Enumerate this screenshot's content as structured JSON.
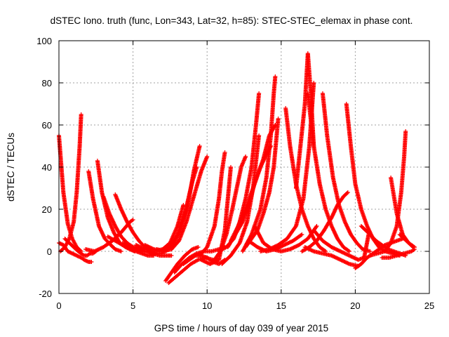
{
  "chart_data": {
    "type": "scatter",
    "title": "dSTEC Iono. truth (func, Lon=343, Lat=32, h=85): STEC-STEC_elemax in phase cont.",
    "xlabel": "GPS time / hours of day 039 of year 2015",
    "ylabel": "dSTEC  / TECUs",
    "xlim": [
      0,
      25
    ],
    "ylim": [
      -20,
      100
    ],
    "xticks": [
      0,
      5,
      10,
      15,
      20,
      25
    ],
    "yticks": [
      -20,
      0,
      20,
      40,
      60,
      80,
      100
    ],
    "grid": true,
    "marker": "plus",
    "color": "#ff0000",
    "series": [
      {
        "x": [
          0.0,
          0.3,
          0.6,
          0.9,
          1.2,
          1.5
        ],
        "values": [
          55,
          28,
          13,
          6,
          2,
          0
        ]
      },
      {
        "x": [
          0.0,
          0.3,
          0.6,
          0.9,
          1.2,
          1.5,
          1.7,
          2.0,
          2.2
        ],
        "values": [
          4,
          3,
          0,
          -1,
          -2,
          -3,
          -4,
          -5,
          -5
        ]
      },
      {
        "x": [
          0.1,
          0.4,
          0.7,
          1.0,
          1.2,
          1.4,
          1.5
        ],
        "values": [
          0,
          2,
          6,
          14,
          28,
          50,
          65
        ]
      },
      {
        "x": [
          0.4,
          0.7,
          1.0,
          1.3,
          1.5,
          1.7,
          1.9,
          2.1,
          2.3,
          2.5
        ],
        "values": [
          6,
          4,
          2,
          0,
          -1,
          -2,
          -2,
          -1,
          -1,
          0
        ]
      },
      {
        "x": [
          2.0,
          2.3,
          2.7,
          3.1,
          3.5,
          3.8,
          4.2
        ],
        "values": [
          38,
          25,
          12,
          6,
          3,
          1,
          0
        ]
      },
      {
        "x": [
          2.6,
          2.9,
          3.3,
          3.7,
          4.1,
          4.5,
          4.8,
          5.1
        ],
        "values": [
          43,
          28,
          16,
          9,
          4,
          2,
          1,
          0
        ]
      },
      {
        "x": [
          3.0,
          3.4,
          3.8,
          4.2,
          4.6,
          5.0,
          5.4,
          5.8
        ],
        "values": [
          26,
          18,
          12,
          7,
          4,
          2,
          1,
          0
        ]
      },
      {
        "x": [
          3.8,
          4.2,
          4.6,
          5.0,
          5.4,
          5.8,
          6.2,
          6.6,
          7.0
        ],
        "values": [
          27,
          20,
          14,
          9,
          5,
          2,
          0,
          -1,
          -1
        ]
      },
      {
        "x": [
          1.8,
          2.4,
          3.0,
          3.6,
          4.2,
          4.8,
          5.0
        ],
        "values": [
          1,
          0,
          2,
          5,
          9,
          14,
          15
        ]
      },
      {
        "x": [
          3.3,
          3.8,
          4.3,
          4.8,
          5.2,
          5.6,
          6.0,
          6.4
        ],
        "values": [
          7,
          5,
          3,
          1,
          0,
          -1,
          -2,
          -2
        ]
      },
      {
        "x": [
          4.3,
          4.8,
          5.3,
          5.8,
          6.3,
          6.8,
          7.2,
          7.6
        ],
        "values": [
          4,
          2,
          1,
          0,
          -1,
          -2,
          -2,
          -2
        ]
      },
      {
        "x": [
          5.2,
          5.8,
          6.4,
          7.0,
          7.5,
          8.0,
          8.4
        ],
        "values": [
          3,
          1,
          0,
          1,
          4,
          12,
          22
        ]
      },
      {
        "x": [
          5.8,
          6.4,
          7.0,
          7.5,
          8.0,
          8.5,
          9.0,
          9.3
        ],
        "values": [
          3,
          1,
          0,
          2,
          8,
          18,
          33,
          40
        ]
      },
      {
        "x": [
          6.6,
          7.2,
          7.7,
          8.2,
          8.7,
          9.1,
          9.5
        ],
        "values": [
          1,
          0,
          3,
          10,
          22,
          38,
          50
        ]
      },
      {
        "x": [
          7.0,
          7.6,
          8.1,
          8.6,
          9.1,
          9.6,
          10.0
        ],
        "values": [
          0,
          1,
          5,
          14,
          26,
          38,
          45
        ]
      },
      {
        "x": [
          7.2,
          7.6,
          8.0,
          8.5,
          9.0,
          9.4
        ],
        "values": [
          -14,
          -10,
          -6,
          -2,
          1,
          2
        ]
      },
      {
        "x": [
          7.4,
          7.9,
          8.4,
          8.9,
          9.4,
          9.9,
          10.4
        ],
        "values": [
          -15,
          -12,
          -9,
          -6,
          -4,
          -3,
          -4
        ]
      },
      {
        "x": [
          7.8,
          8.3,
          8.8,
          9.3,
          9.8,
          10.3,
          10.8,
          11.2
        ],
        "values": [
          -10,
          -6,
          -3,
          -1,
          0,
          0,
          1,
          2
        ]
      },
      {
        "x": [
          8.4,
          8.8,
          9.2,
          9.6,
          10.0,
          10.4,
          10.8,
          11.2
        ],
        "values": [
          -6,
          -4,
          -2,
          -2,
          -3,
          -5,
          -6,
          -4
        ]
      },
      {
        "x": [
          9.5,
          10.0,
          10.5,
          10.8,
          11.0,
          11.2
        ],
        "values": [
          -2,
          2,
          12,
          25,
          38,
          47
        ]
      },
      {
        "x": [
          9.6,
          10.2,
          10.8,
          11.2,
          11.6
        ],
        "values": [
          -4,
          -6,
          -4,
          10,
          40
        ]
      },
      {
        "x": [
          10.4,
          10.9,
          11.3,
          11.7,
          12.0,
          12.3,
          12.6
        ],
        "values": [
          -5,
          0,
          8,
          20,
          30,
          40,
          45
        ]
      },
      {
        "x": [
          10.8,
          11.3,
          11.8,
          12.2,
          12.6,
          13.0,
          13.3,
          13.5
        ],
        "values": [
          0,
          2,
          6,
          14,
          25,
          40,
          60,
          75
        ]
      },
      {
        "x": [
          11.0,
          11.6,
          12.2,
          12.7,
          13.1,
          13.5
        ],
        "values": [
          -6,
          -2,
          4,
          14,
          30,
          55
        ]
      },
      {
        "x": [
          11.4,
          11.9,
          12.4,
          12.8,
          13.2,
          13.6,
          14.0,
          14.3
        ],
        "values": [
          2,
          8,
          14,
          22,
          32,
          40,
          46,
          50
        ]
      },
      {
        "x": [
          11.6,
          12.1,
          12.6,
          13.0,
          13.4,
          13.8,
          14.2,
          14.6
        ],
        "values": [
          5,
          12,
          20,
          28,
          36,
          44,
          55,
          60
        ]
      },
      {
        "x": [
          12.4,
          13.0,
          13.6,
          14.0,
          14.3,
          14.5,
          14.6
        ],
        "values": [
          0,
          8,
          20,
          35,
          55,
          75,
          83
        ]
      },
      {
        "x": [
          12.6,
          13.0,
          13.4,
          13.8,
          14.2,
          14.5,
          14.8
        ],
        "values": [
          2,
          6,
          10,
          18,
          28,
          40,
          63
        ]
      },
      {
        "x": [
          12.8,
          13.4,
          14.0,
          14.6,
          15.2,
          15.8,
          16.4
        ],
        "values": [
          5,
          2,
          0,
          1,
          3,
          5,
          8
        ]
      },
      {
        "x": [
          13.2,
          13.8,
          14.4,
          15.0,
          15.6,
          16.2,
          16.8,
          17.4
        ],
        "values": [
          12,
          4,
          1,
          0,
          1,
          3,
          6,
          12
        ]
      },
      {
        "x": [
          13.6,
          14.2,
          14.8,
          15.4,
          16.0,
          16.5,
          16.9,
          17.2
        ],
        "values": [
          0,
          1,
          3,
          6,
          12,
          25,
          50,
          80
        ]
      },
      {
        "x": [
          15.3,
          15.6,
          16.0,
          16.4,
          16.8,
          17.2,
          17.6,
          18.0
        ],
        "values": [
          68,
          50,
          32,
          20,
          12,
          6,
          2,
          0
        ]
      },
      {
        "x": [
          16.0,
          16.3,
          16.6,
          16.8,
          17.0,
          17.2
        ],
        "values": [
          30,
          50,
          70,
          94,
          75,
          50
        ]
      },
      {
        "x": [
          16.8,
          17.2,
          17.6,
          18.0,
          18.4,
          18.8,
          19.2,
          19.6
        ],
        "values": [
          75,
          50,
          32,
          20,
          12,
          6,
          2,
          0
        ]
      },
      {
        "x": [
          17.8,
          18.1,
          18.5,
          18.9,
          19.3,
          19.7,
          20.1,
          20.5,
          21.0
        ],
        "values": [
          75,
          55,
          35,
          22,
          14,
          8,
          4,
          1,
          0
        ]
      },
      {
        "x": [
          16.4,
          16.9,
          17.4,
          17.9,
          18.4,
          18.8,
          19.2,
          19.5
        ],
        "values": [
          0,
          2,
          5,
          10,
          16,
          22,
          26,
          28
        ]
      },
      {
        "x": [
          16.6,
          17.2,
          17.8,
          18.4,
          19.0,
          19.6,
          20.2
        ],
        "values": [
          2,
          0,
          -1,
          -2,
          -4,
          -6,
          -7
        ]
      },
      {
        "x": [
          17.2,
          17.8,
          18.4,
          19.0,
          19.6,
          20.2,
          20.6,
          20.9
        ],
        "values": [
          10,
          5,
          2,
          0,
          -2,
          -4,
          -3,
          8
        ]
      },
      {
        "x": [
          19.4,
          19.7,
          20.0,
          20.4,
          20.8,
          21.2,
          21.6,
          22.0,
          22.5,
          23.0
        ],
        "values": [
          70,
          50,
          32,
          20,
          12,
          6,
          2,
          0,
          -1,
          -2
        ]
      },
      {
        "x": [
          20.0,
          20.4,
          20.8,
          21.2,
          21.6,
          22.0,
          22.4,
          22.8,
          23.2
        ],
        "values": [
          -8,
          -6,
          -3,
          -1,
          1,
          3,
          4,
          5,
          6
        ]
      },
      {
        "x": [
          20.4,
          20.7,
          21.0,
          21.4,
          21.8,
          22.2,
          22.6,
          23.0,
          23.4
        ],
        "values": [
          12,
          10,
          8,
          5,
          3,
          1,
          0,
          -1,
          -2
        ]
      },
      {
        "x": [
          21.0,
          21.5,
          22.0,
          22.4,
          22.8,
          23.1,
          23.3,
          23.4
        ],
        "values": [
          -2,
          -1,
          0,
          4,
          12,
          28,
          45,
          57
        ]
      },
      {
        "x": [
          22.4,
          22.8,
          23.2,
          23.6,
          24.0
        ],
        "values": [
          35,
          18,
          8,
          4,
          2
        ]
      },
      {
        "x": [
          21.8,
          22.3,
          22.8,
          23.3,
          23.8,
          24.0
        ],
        "values": [
          -3,
          -3,
          -2,
          -1,
          0,
          1
        ]
      },
      {
        "x": [
          23.0,
          23.3,
          23.6,
          23.9,
          24.0
        ],
        "values": [
          8,
          6,
          4,
          2,
          2
        ]
      }
    ]
  }
}
